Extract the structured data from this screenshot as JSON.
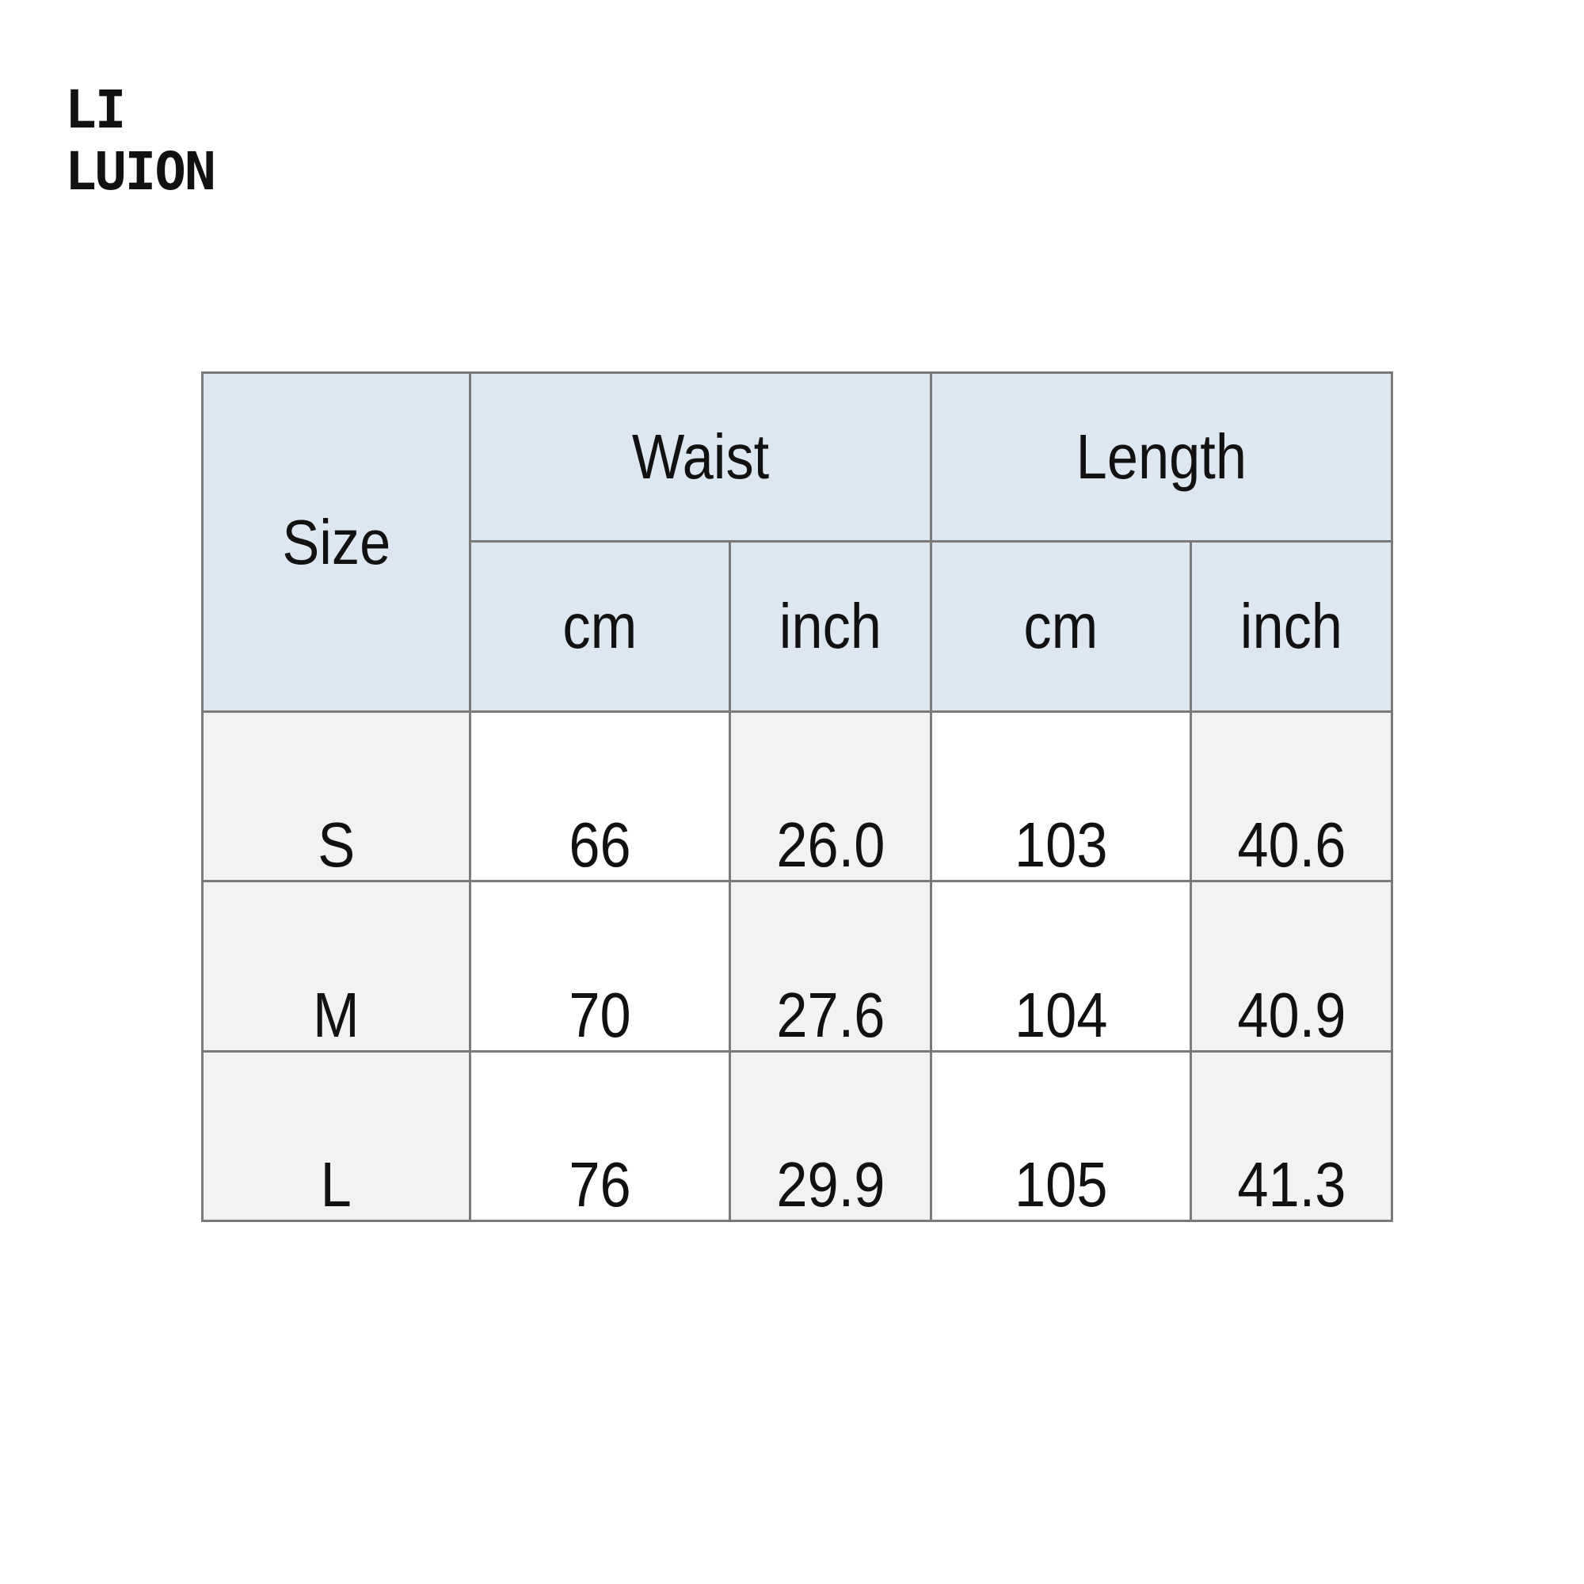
{
  "logo": {
    "line1": "LI",
    "line2": "LUION"
  },
  "table": {
    "headers": {
      "size": "Size",
      "groups": [
        "Waist",
        "Length"
      ],
      "units": [
        "cm",
        "inch",
        "cm",
        "inch"
      ]
    },
    "rows": [
      {
        "size": "S",
        "values": [
          "66",
          "26.0",
          "103",
          "40.6"
        ]
      },
      {
        "size": "M",
        "values": [
          "70",
          "27.6",
          "104",
          "40.9"
        ]
      },
      {
        "size": "L",
        "values": [
          "76",
          "29.9",
          "105",
          "41.3"
        ]
      }
    ]
  },
  "colors": {
    "header_bg": "#dde7f1",
    "shaded_cell": "#f2f2f2",
    "border": "#7a7a7a"
  }
}
